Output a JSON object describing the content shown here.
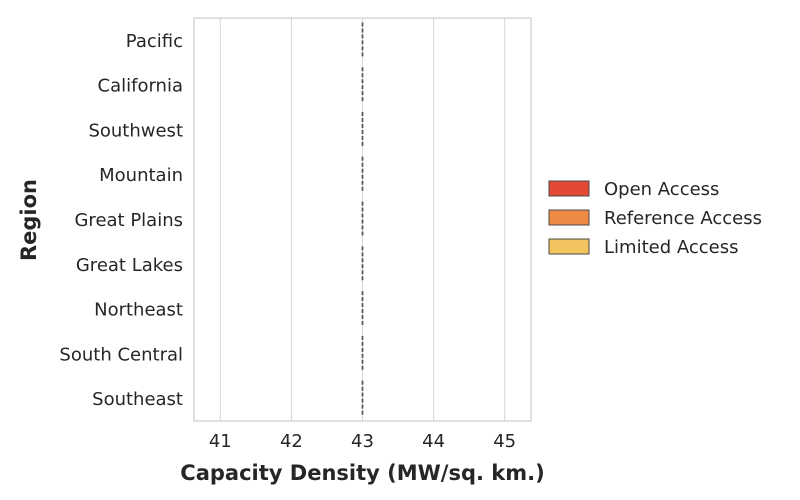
{
  "chart_data": {
    "type": "violin",
    "orientation": "horizontal",
    "title": "",
    "xlabel": "Capacity Density (MW/sq. km.)",
    "ylabel": "Region",
    "categories": [
      "Pacific",
      "California",
      "Southwest",
      "Mountain",
      "Great Plains",
      "Great Lakes",
      "Northeast",
      "South Central",
      "Southeast"
    ],
    "series": [
      {
        "name": "Open Access",
        "color": "#e24a33",
        "values": [
          43,
          43,
          43,
          43,
          43,
          43,
          43,
          43,
          43
        ]
      },
      {
        "name": "Reference Access",
        "color": "#ef8a45",
        "values": [
          43,
          43,
          43,
          43,
          43,
          43,
          43,
          43,
          43
        ]
      },
      {
        "name": "Limited Access",
        "color": "#f2c35e",
        "values": [
          43,
          43,
          43,
          43,
          43,
          43,
          43,
          43,
          43
        ]
      }
    ],
    "xlim": [
      40.63,
      45.37
    ],
    "xticks": [
      41,
      42,
      43,
      44,
      45
    ],
    "median_line_value": 43,
    "grid": "vertical",
    "legend_position": "right"
  }
}
